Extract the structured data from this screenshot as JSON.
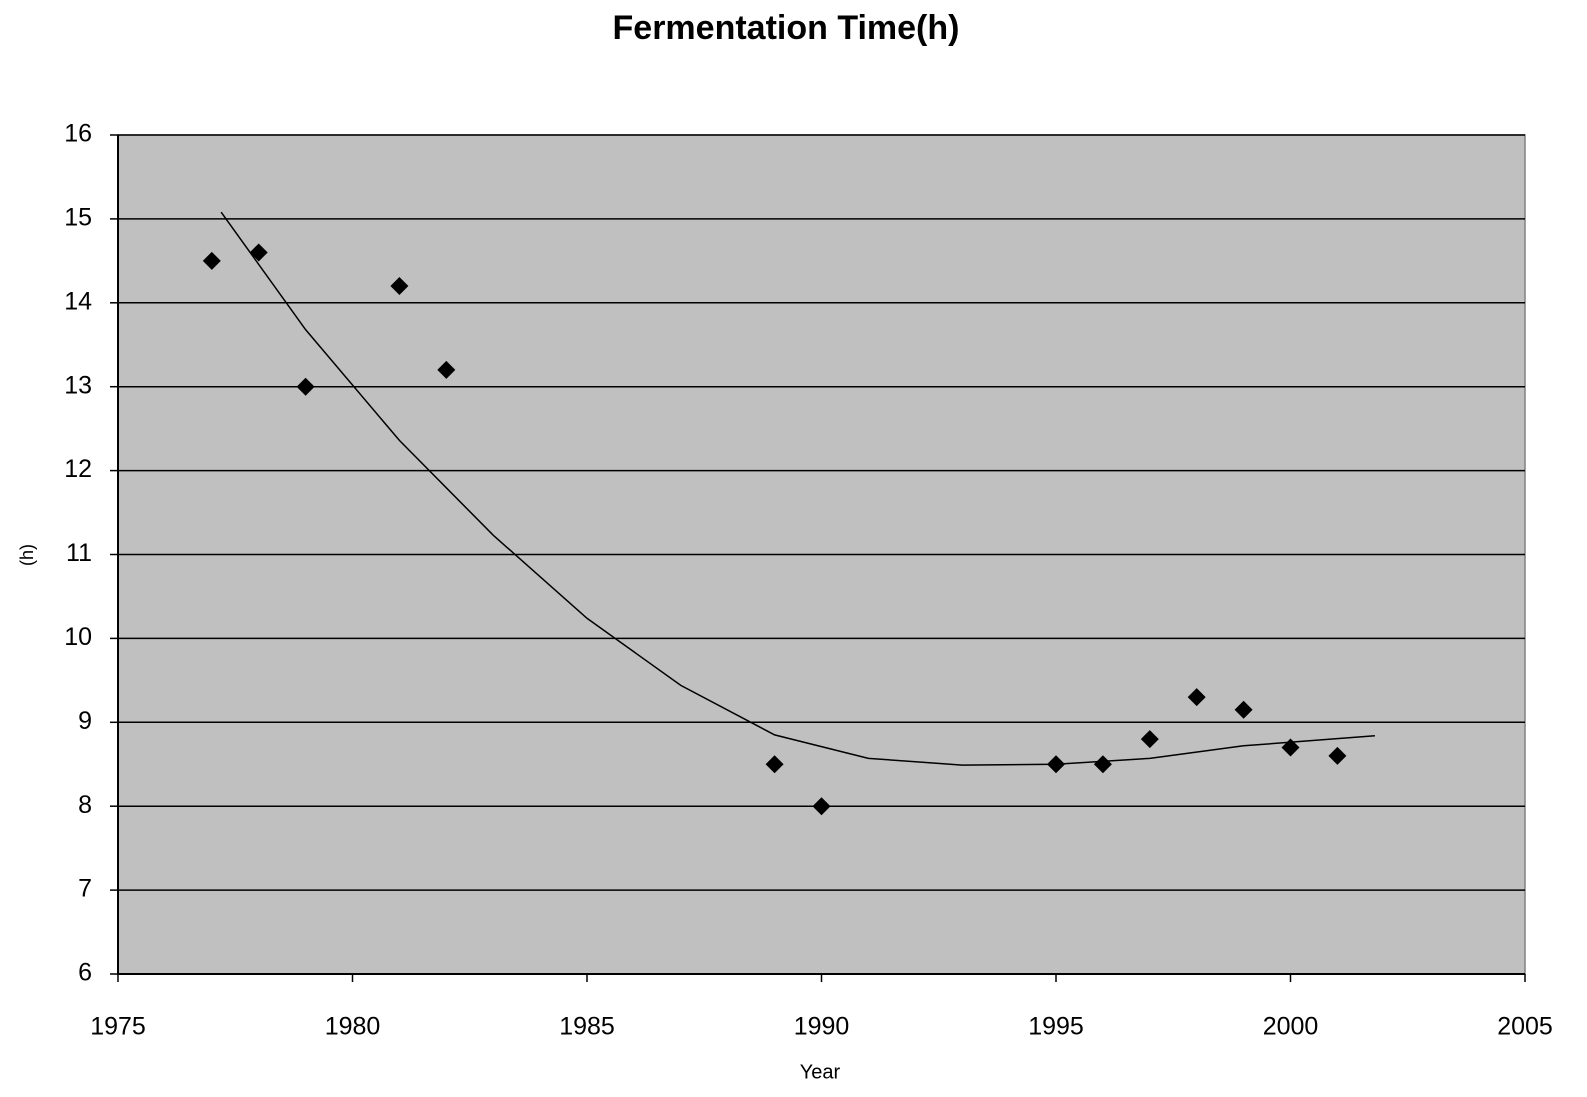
{
  "chart_data": {
    "type": "scatter",
    "title": "Fermentation Time(h)",
    "xlabel": "Year",
    "ylabel": "(h)",
    "xlim": [
      1975,
      2005
    ],
    "xticks": [
      1975,
      1980,
      1985,
      1990,
      1995,
      2000,
      2005
    ],
    "ylim": [
      6,
      16
    ],
    "yticks": [
      6,
      7,
      8,
      9,
      10,
      11,
      12,
      13,
      14,
      15,
      16
    ],
    "grid": true,
    "background": "#c0c0c0",
    "series": [
      {
        "type": "scatter",
        "color": "#000000",
        "x": [
          1977,
          1978,
          1979,
          1981,
          1982,
          1989,
          1990,
          1995,
          1996,
          1997,
          1998,
          1999,
          2000,
          2001
        ],
        "values": [
          14.5,
          14.6,
          13,
          14.2,
          13.2,
          8.5,
          8.0,
          8.5,
          8.5,
          8.8,
          9.3,
          9.15,
          8.7,
          8.6
        ]
      },
      {
        "type": "line",
        "color": "#000000",
        "x": [
          1977.2,
          1979,
          1981,
          1983,
          1985,
          1987,
          1989,
          1991,
          1993,
          1995,
          1997,
          1999,
          2001.8
        ],
        "values": [
          15.08,
          13.68,
          12.36,
          11.23,
          10.24,
          9.44,
          8.85,
          8.57,
          8.49,
          8.5,
          8.57,
          8.72,
          8.84
        ]
      }
    ]
  }
}
